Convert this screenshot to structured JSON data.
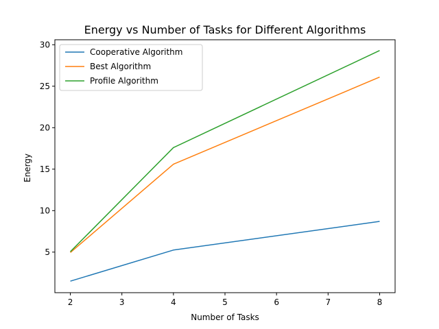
{
  "chart_data": {
    "type": "line",
    "title": "Energy vs Number of Tasks for Different Algorithms",
    "xlabel": "Number of Tasks",
    "ylabel": "Energy",
    "x": [
      2,
      4,
      8
    ],
    "xlim": [
      1.7,
      8.3
    ],
    "ylim": [
      0.11,
      30.6
    ],
    "xticks": [
      2,
      3,
      4,
      5,
      6,
      7,
      8
    ],
    "yticks": [
      5,
      10,
      15,
      20,
      25,
      30
    ],
    "grid": false,
    "legend_position": "top-left",
    "series": [
      {
        "name": "Cooperative Algorithm",
        "values": [
          1.5,
          5.25,
          8.7
        ],
        "color": "#1f77b4"
      },
      {
        "name": "Best Algorithm",
        "values": [
          4.95,
          15.6,
          26.1
        ],
        "color": "#ff7f0e"
      },
      {
        "name": "Profile Algorithm",
        "values": [
          5.05,
          17.6,
          29.3
        ],
        "color": "#2ca02c"
      }
    ]
  }
}
